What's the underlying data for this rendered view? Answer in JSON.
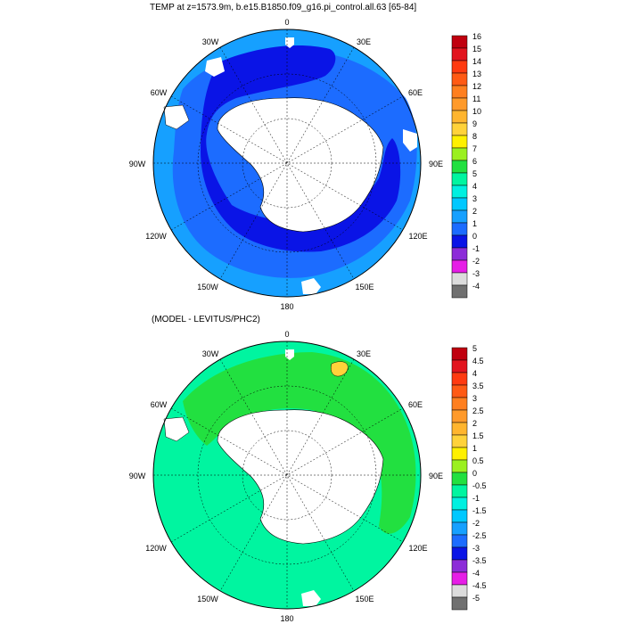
{
  "panels": [
    {
      "title": "TEMP at z=1573.9m, b.e15.B1850.f09_g16.pi_control.all.63 [65-84]",
      "lon_labels": [
        "0",
        "30E",
        "60E",
        "90E",
        "120E",
        "150E",
        "180",
        "150W",
        "120W",
        "90W",
        "60W",
        "30W"
      ],
      "colorbar": {
        "labels": [
          "16",
          "15",
          "14",
          "13",
          "12",
          "11",
          "10",
          "9",
          "8",
          "7",
          "6",
          "5",
          "4",
          "3",
          "2",
          "1",
          "0",
          "-1",
          "-2",
          "-3",
          "-4"
        ],
        "colors": [
          "#c0000f",
          "#e2141e",
          "#ff3a10",
          "#ff5a14",
          "#ff7f1f",
          "#ff9a2a",
          "#ffb52e",
          "#ffd23a",
          "#fff000",
          "#9bf020",
          "#22e040",
          "#00f5a0",
          "#00f0e0",
          "#00c8ff",
          "#16a0ff",
          "#1c6cff",
          "#0a14e6",
          "#8c2cd8",
          "#e61ee6",
          "#dcdcdc",
          "#707070"
        ]
      }
    },
    {
      "title": "(MODEL - LEVITUS/PHC2)",
      "lon_labels": [
        "0",
        "30E",
        "60E",
        "90E",
        "120E",
        "150E",
        "180",
        "150W",
        "120W",
        "90W",
        "60W",
        "30W"
      ],
      "colorbar": {
        "labels": [
          "5",
          "4.5",
          "4",
          "3.5",
          "3",
          "2.5",
          "2",
          "1.5",
          "1",
          "0.5",
          "0",
          "-0.5",
          "-1",
          "-1.5",
          "-2",
          "-2.5",
          "-3",
          "-3.5",
          "-4",
          "-4.5",
          "-5"
        ],
        "colors": [
          "#c0000f",
          "#e2141e",
          "#ff3a10",
          "#ff5a14",
          "#ff7f1f",
          "#ff9a2a",
          "#ffb52e",
          "#ffd23a",
          "#fff000",
          "#9bf020",
          "#22e040",
          "#00f5a0",
          "#00f0e0",
          "#00c8ff",
          "#16a0ff",
          "#1c6cff",
          "#0a14e6",
          "#8c2cd8",
          "#e61ee6",
          "#dcdcdc",
          "#707070"
        ]
      }
    }
  ],
  "colors": {
    "top_outer": "#16a0ff",
    "top_mid": "#1c6cff",
    "top_inner": "#0a14e6",
    "bottom_main": "#00f5a0",
    "bottom_band": "#22e040",
    "land": "#ffffff"
  }
}
